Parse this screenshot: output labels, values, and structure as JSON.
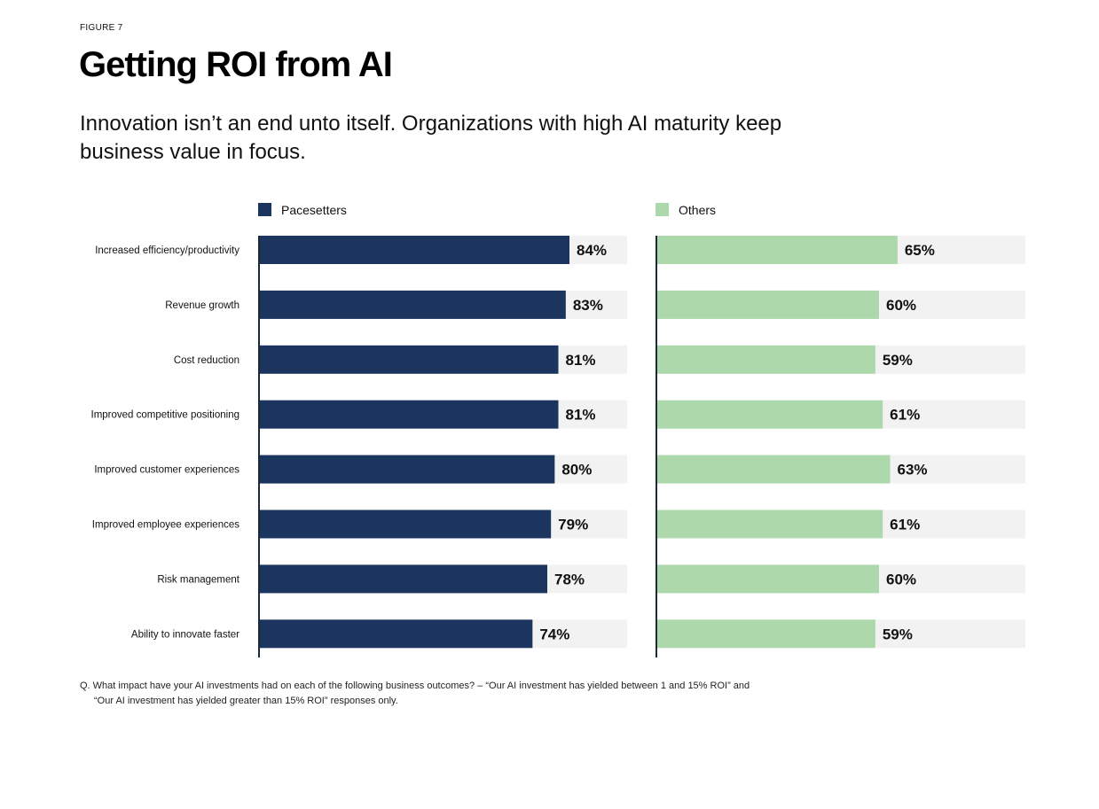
{
  "figure_label": "FIGURE 7",
  "title": "Getting ROI from AI",
  "subtitle": "Innovation isn’t an end unto itself. Organizations with high AI maturity keep business value in focus.",
  "footnote": {
    "line1": "Q. What impact have your AI investments had on each of the following business outcomes? – “Our AI investment has yielded between 1 and 15% ROI” and",
    "line2": "“Our AI investment has yielded greater than 15% ROI” responses only."
  },
  "colors": {
    "pacesetters": "#1c355e",
    "others": "#acd8ab",
    "track": "#f2f2f2",
    "axis": "#1a2a3a"
  },
  "chart_data": {
    "type": "bar",
    "orientation": "horizontal",
    "categories": [
      "Increased efficiency/productivity",
      "Revenue growth",
      "Cost reduction",
      "Improved competitive positioning",
      "Improved customer experiences",
      "Improved employee experiences",
      "Risk management",
      "Ability to innovate faster"
    ],
    "series": [
      {
        "name": "Pacesetters",
        "values": [
          84,
          83,
          81,
          81,
          80,
          79,
          78,
          74
        ],
        "labels": [
          "84%",
          "83%",
          "81%",
          "81%",
          "80%",
          "79%",
          "78%",
          "74%"
        ]
      },
      {
        "name": "Others",
        "values": [
          65,
          60,
          59,
          61,
          63,
          61,
          60,
          59
        ],
        "labels": [
          "65%",
          "60%",
          "59%",
          "61%",
          "63%",
          "61%",
          "60%",
          "59%"
        ]
      }
    ],
    "xlim": [
      0,
      120
    ],
    "legend": "top"
  }
}
